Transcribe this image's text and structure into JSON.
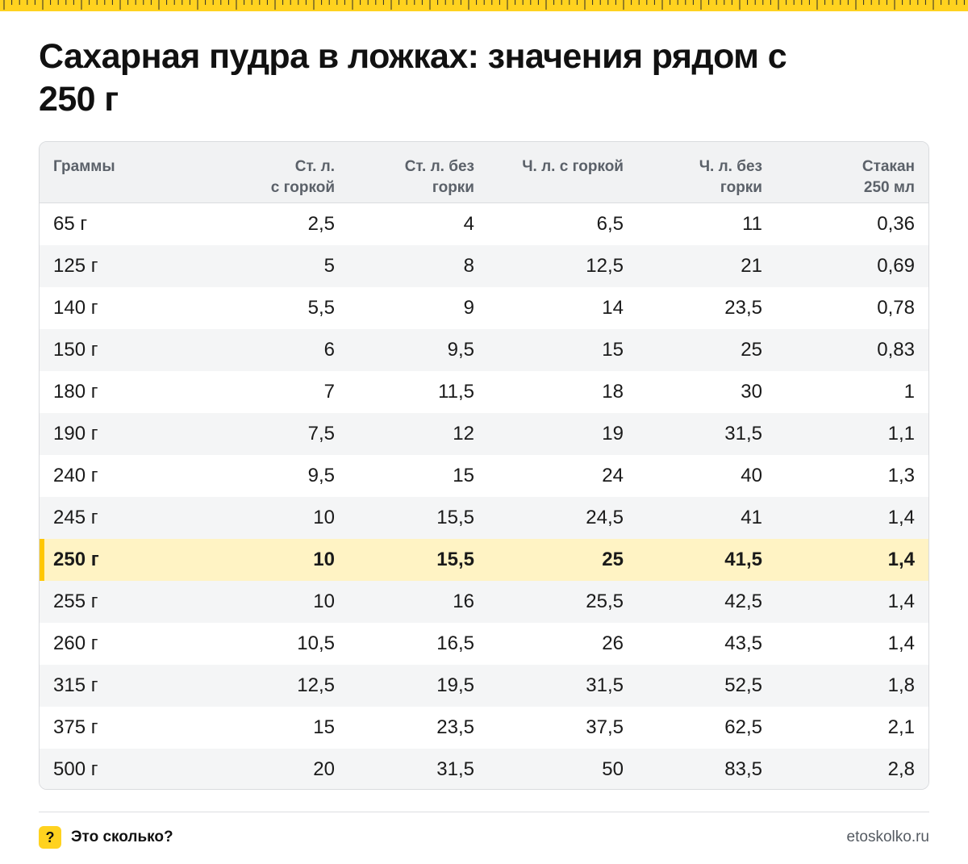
{
  "title": "Сахарная пудра в ложках: значения рядом с 250 г",
  "table": {
    "headers": [
      {
        "lines": [
          "Граммы"
        ]
      },
      {
        "lines": [
          "Ст. л.",
          "с горкой"
        ]
      },
      {
        "lines": [
          "Ст. л. без",
          "горки"
        ]
      },
      {
        "lines": [
          "Ч. л. с горкой"
        ]
      },
      {
        "lines": [
          "Ч. л. без",
          "горки"
        ]
      },
      {
        "lines": [
          "Стакан",
          "250 мл"
        ]
      }
    ],
    "rows": [
      [
        "65 г",
        "2,5",
        "4",
        "6,5",
        "11",
        "0,36"
      ],
      [
        "125 г",
        "5",
        "8",
        "12,5",
        "21",
        "0,69"
      ],
      [
        "140 г",
        "5,5",
        "9",
        "14",
        "23,5",
        "0,78"
      ],
      [
        "150 г",
        "6",
        "9,5",
        "15",
        "25",
        "0,83"
      ],
      [
        "180 г",
        "7",
        "11,5",
        "18",
        "30",
        "1"
      ],
      [
        "190 г",
        "7,5",
        "12",
        "19",
        "31,5",
        "1,1"
      ],
      [
        "240 г",
        "9,5",
        "15",
        "24",
        "40",
        "1,3"
      ],
      [
        "245 г",
        "10",
        "15,5",
        "24,5",
        "41",
        "1,4"
      ],
      [
        "250 г",
        "10",
        "15,5",
        "25",
        "41,5",
        "1,4"
      ],
      [
        "255 г",
        "10",
        "16",
        "25,5",
        "42,5",
        "1,4"
      ],
      [
        "260 г",
        "10,5",
        "16,5",
        "26",
        "43,5",
        "1,4"
      ],
      [
        "315 г",
        "12,5",
        "19,5",
        "31,5",
        "52,5",
        "1,8"
      ],
      [
        "375 г",
        "15",
        "23,5",
        "37,5",
        "62,5",
        "2,1"
      ],
      [
        "500 г",
        "20",
        "31,5",
        "50",
        "83,5",
        "2,8"
      ]
    ],
    "highlighted_row": "250 г"
  },
  "footer": {
    "brand_icon": "?",
    "brand_name": "Это сколько?",
    "site": "etoskolko.ru"
  },
  "colors": {
    "accent": "#FFD21F",
    "highlight_bg": "#FFF3C4",
    "highlight_bar": "#FFC700",
    "header_bg": "#f1f2f3",
    "header_text": "#5b6169",
    "stripe_bg": "#f4f5f6"
  },
  "icons": {
    "ruler": "ruler-ticks-icon",
    "brand": "question-mark-icon"
  }
}
